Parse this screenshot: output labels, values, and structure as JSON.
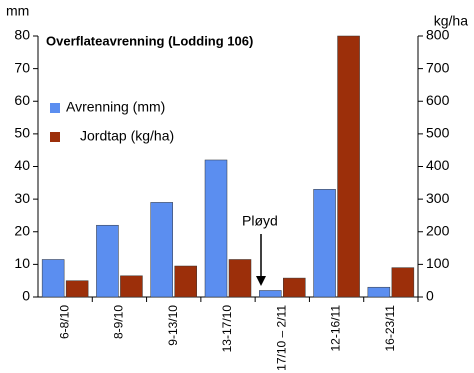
{
  "chart_data": {
    "type": "bar",
    "title": "Overflateavrenning (Lodding 106)",
    "y_label": "mm",
    "y2_label": "kg/ha",
    "annotation": "Pløyd",
    "categories": [
      "6-8/10",
      "8-9/10",
      "9-13/10",
      "13-17/10",
      "17/10 – 2/11",
      "12-16/11",
      "16-23/11"
    ],
    "series": [
      {
        "name": "Avrenning (mm)",
        "color": "#5b8ef0",
        "values": [
          11.5,
          22,
          29,
          42,
          2,
          33,
          3
        ]
      },
      {
        "name": "Jordtap (kg/ha)",
        "color": "#9c2f0a",
        "axis": "y2",
        "values": [
          50,
          65,
          95,
          115,
          58,
          800,
          90
        ]
      }
    ],
    "ylim": [
      0,
      80
    ],
    "yticks": [
      0,
      10,
      20,
      30,
      40,
      50,
      60,
      70,
      80
    ],
    "y2lim": [
      0,
      800
    ],
    "y2ticks": [
      0,
      100,
      200,
      300,
      400,
      500,
      600,
      700,
      800
    ]
  }
}
